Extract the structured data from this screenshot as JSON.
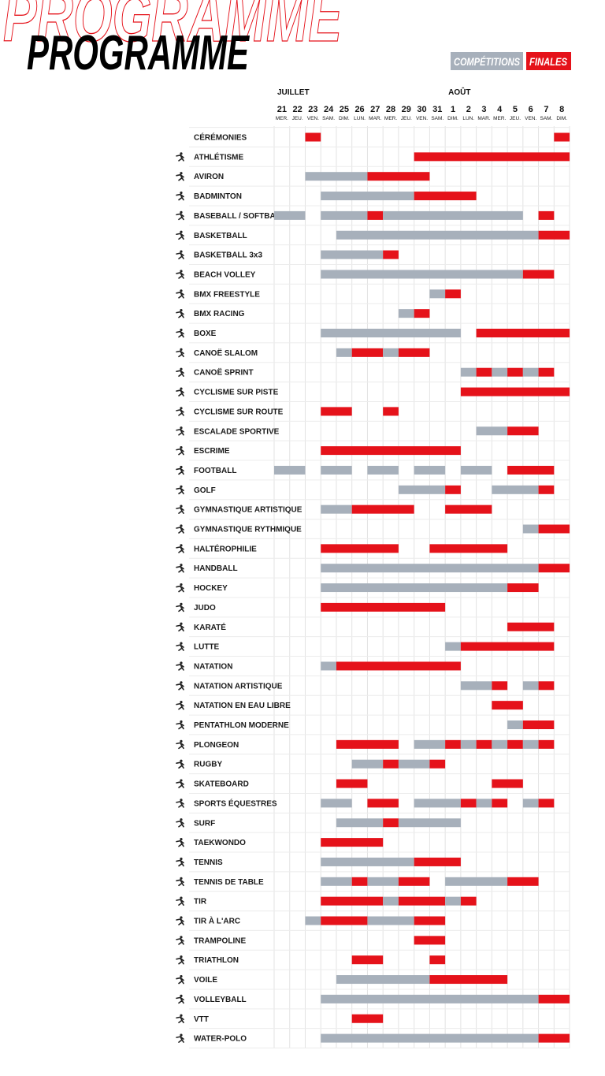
{
  "title": "PROGRAMME",
  "legend": [
    {
      "label": "COMPÉTITIONS",
      "color": "#a7b0bb"
    },
    {
      "label": "FINALES",
      "color": "#e5121a"
    }
  ],
  "days": [
    {
      "day": "21",
      "weekday": "MER.",
      "month": "JUILLET"
    },
    {
      "day": "22",
      "weekday": "JEU."
    },
    {
      "day": "23",
      "weekday": "VEN."
    },
    {
      "day": "24",
      "weekday": "SAM."
    },
    {
      "day": "25",
      "weekday": "DIM."
    },
    {
      "day": "26",
      "weekday": "LUN."
    },
    {
      "day": "27",
      "weekday": "MAR."
    },
    {
      "day": "28",
      "weekday": "MER."
    },
    {
      "day": "29",
      "weekday": "JEU."
    },
    {
      "day": "30",
      "weekday": "VEN."
    },
    {
      "day": "31",
      "weekday": "SAM."
    },
    {
      "day": "1",
      "weekday": "DIM.",
      "month": "AOÛT"
    },
    {
      "day": "2",
      "weekday": "LUN."
    },
    {
      "day": "3",
      "weekday": "MAR."
    },
    {
      "day": "4",
      "weekday": "MER."
    },
    {
      "day": "5",
      "weekday": "JEU."
    },
    {
      "day": "6",
      "weekday": "VEN."
    },
    {
      "day": "7",
      "weekday": "SAM."
    },
    {
      "day": "8",
      "weekday": "DIM."
    }
  ],
  "rows": [
    {
      "sport": "CÉRÉMONIES",
      "schedule": "..f...............f"
    },
    {
      "sport": "ATHLÉTISME",
      "schedule": ".........ffffffffff"
    },
    {
      "sport": "AVIRON",
      "schedule": "..ccccffff........."
    },
    {
      "sport": "BADMINTON",
      "schedule": "...ccccccffff......"
    },
    {
      "sport": "BASEBALL / SOFTBALL",
      "schedule": "cc.cccfccccccccc.f."
    },
    {
      "sport": "BASKETBALL",
      "schedule": "....cccccccccccccff"
    },
    {
      "sport": "BASKETBALL 3x3",
      "schedule": "...ccccf..........."
    },
    {
      "sport": "BEACH VOLLEY",
      "schedule": "...cccccccccccccff."
    },
    {
      "sport": "BMX FREESTYLE",
      "schedule": "..........cf......."
    },
    {
      "sport": "BMX RACING",
      "schedule": "........cf........."
    },
    {
      "sport": "BOXE",
      "schedule": "...ccccccccc.ffffff"
    },
    {
      "sport": "CANOË SLALOM",
      "schedule": "....cffcff........."
    },
    {
      "sport": "CANOË SPRINT",
      "schedule": "............cfcfcf."
    },
    {
      "sport": "CYCLISME SUR PISTE",
      "schedule": "............fffffff"
    },
    {
      "sport": "CYCLISME SUR ROUTE",
      "schedule": "...ff..f..........."
    },
    {
      "sport": "ESCALADE SPORTIVE",
      "schedule": ".............ccff.."
    },
    {
      "sport": "ESCRIME",
      "schedule": "...fffffffff......."
    },
    {
      "sport": "FOOTBALL",
      "schedule": "cc.cc.cc.cc.cc.fff."
    },
    {
      "sport": "GOLF",
      "schedule": "........cccf..cccf."
    },
    {
      "sport": "GYMNASTIQUE ARTISTIQUE",
      "schedule": "...ccffff..fff....."
    },
    {
      "sport": "GYMNASTIQUE RYTHMIQUE",
      "schedule": "................cff"
    },
    {
      "sport": "HALTÉROPHILIE",
      "schedule": "...fffff..fffff...."
    },
    {
      "sport": "HANDBALL",
      "schedule": "...ccccccccccccccff"
    },
    {
      "sport": "HOCKEY",
      "schedule": "...ccccccccccccff.."
    },
    {
      "sport": "JUDO",
      "schedule": "...ffffffff........"
    },
    {
      "sport": "KARATÉ",
      "schedule": "...............fff."
    },
    {
      "sport": "LUTTE",
      "schedule": "...........cffffff."
    },
    {
      "sport": "NATATION",
      "schedule": "...cffffffff......."
    },
    {
      "sport": "NATATION ARTISTIQUE",
      "schedule": "............ccf.cf."
    },
    {
      "sport": "NATATION EN EAU LIBRE",
      "schedule": "..............ff..."
    },
    {
      "sport": "PENTATHLON MODERNE",
      "schedule": "...............cff."
    },
    {
      "sport": "PLONGEON",
      "schedule": "....ffff.ccfcfcfcf."
    },
    {
      "sport": "RUGBY",
      "schedule": ".....ccfccf........"
    },
    {
      "sport": "SKATEBOARD",
      "schedule": "....ff........ff..."
    },
    {
      "sport": "SPORTS ÉQUESTRES",
      "schedule": "...cc.ff.cccfcf.cf."
    },
    {
      "sport": "SURF",
      "schedule": "....cccfcccc......."
    },
    {
      "sport": "TAEKWONDO",
      "schedule": "...ffff............"
    },
    {
      "sport": "TENNIS",
      "schedule": "...ccccccfff......."
    },
    {
      "sport": "TENNIS DE TABLE",
      "schedule": "...ccfccff.ccccff.."
    },
    {
      "sport": "TIR",
      "schedule": "...ffffcfffcf......"
    },
    {
      "sport": "TIR À L'ARC",
      "schedule": "..cfffcccff........"
    },
    {
      "sport": "TRAMPOLINE",
      "schedule": ".........ff........"
    },
    {
      "sport": "TRIATHLON",
      "schedule": ".....ff...f........"
    },
    {
      "sport": "VOILE",
      "schedule": "....ccccccfffff...."
    },
    {
      "sport": "VOLLEYBALL",
      "schedule": "...ccccccccccccccff"
    },
    {
      "sport": "VTT",
      "schedule": ".....ff............"
    },
    {
      "sport": "WATER-POLO",
      "schedule": "...ccccccccccccccff"
    }
  ]
}
